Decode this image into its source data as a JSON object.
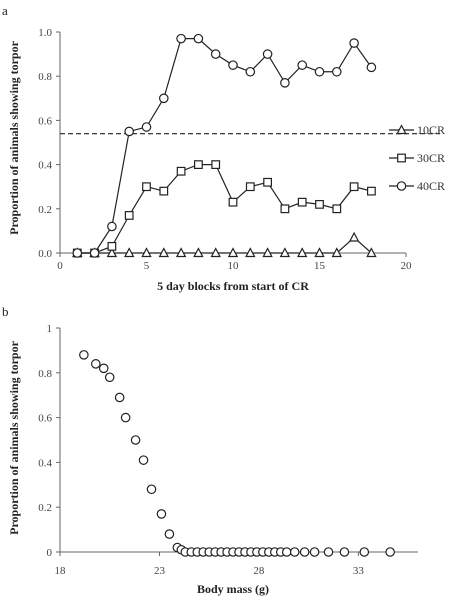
{
  "chart_data": [
    {
      "panel_label": "a",
      "type": "line",
      "xlabel": "5 day blocks from start of CR",
      "ylabel": "Proportion of animals showing torpor",
      "xlim": [
        0,
        20
      ],
      "ylim": [
        0,
        1.0
      ],
      "xticks": [
        0,
        5,
        10,
        15,
        20
      ],
      "yticks": [
        0.0,
        0.2,
        0.4,
        0.6,
        0.8,
        1.0
      ],
      "ytick_labels": [
        "0.0",
        "0.2",
        "0.4",
        "0.6",
        "0.8",
        "1.0"
      ],
      "grid": false,
      "legend_position": "right",
      "reference_line": {
        "y": 0.54,
        "style": "dashed"
      },
      "series": [
        {
          "name": "10CR",
          "marker": "triangle",
          "x": [
            1,
            2,
            3,
            4,
            5,
            6,
            7,
            8,
            9,
            10,
            11,
            12,
            13,
            14,
            15,
            16,
            17,
            18
          ],
          "y": [
            0,
            0,
            0,
            0,
            0,
            0,
            0,
            0,
            0,
            0,
            0,
            0,
            0,
            0,
            0,
            0,
            0.07,
            0
          ]
        },
        {
          "name": "30CR",
          "marker": "square",
          "x": [
            1,
            2,
            3,
            4,
            5,
            6,
            7,
            8,
            9,
            10,
            11,
            12,
            13,
            14,
            15,
            16,
            17,
            18
          ],
          "y": [
            0,
            0,
            0.03,
            0.17,
            0.3,
            0.28,
            0.37,
            0.4,
            0.4,
            0.23,
            0.3,
            0.32,
            0.2,
            0.23,
            0.22,
            0.2,
            0.3,
            0.28
          ]
        },
        {
          "name": "40CR",
          "marker": "circle",
          "x": [
            1,
            2,
            3,
            4,
            5,
            6,
            7,
            8,
            9,
            10,
            11,
            12,
            13,
            14,
            15,
            16,
            17,
            18
          ],
          "y": [
            0,
            0,
            0.12,
            0.55,
            0.57,
            0.7,
            0.97,
            0.97,
            0.9,
            0.85,
            0.82,
            0.9,
            0.77,
            0.85,
            0.82,
            0.82,
            0.95,
            0.84
          ]
        }
      ]
    },
    {
      "panel_label": "b",
      "type": "scatter",
      "xlabel": "Body mass (g)",
      "ylabel": "Proportion of animals showing torpor",
      "xlim": [
        18,
        36
      ],
      "ylim": [
        0,
        1
      ],
      "xticks": [
        18,
        23,
        28,
        33
      ],
      "yticks": [
        0,
        0.2,
        0.4,
        0.6,
        0.8,
        1
      ],
      "ytick_labels": [
        "0",
        "0.2",
        "0.4",
        "0.6",
        "0.8",
        "1"
      ],
      "grid": false,
      "marker": "circle",
      "x": [
        19.2,
        19.8,
        20.2,
        20.5,
        21.0,
        21.3,
        21.8,
        22.2,
        22.6,
        23.1,
        23.5,
        23.9,
        24.1,
        24.3,
        24.6,
        24.9,
        25.2,
        25.5,
        25.8,
        26.1,
        26.4,
        26.7,
        27.0,
        27.3,
        27.6,
        27.9,
        28.2,
        28.5,
        28.8,
        29.1,
        29.4,
        29.8,
        30.3,
        30.8,
        31.5,
        32.3,
        33.3,
        34.6
      ],
      "y": [
        0.88,
        0.84,
        0.82,
        0.78,
        0.69,
        0.6,
        0.5,
        0.41,
        0.28,
        0.17,
        0.08,
        0.02,
        0.01,
        0,
        0,
        0,
        0,
        0,
        0,
        0,
        0,
        0,
        0,
        0,
        0,
        0,
        0,
        0,
        0,
        0,
        0,
        0,
        0,
        0,
        0,
        0,
        0,
        0
      ]
    }
  ]
}
